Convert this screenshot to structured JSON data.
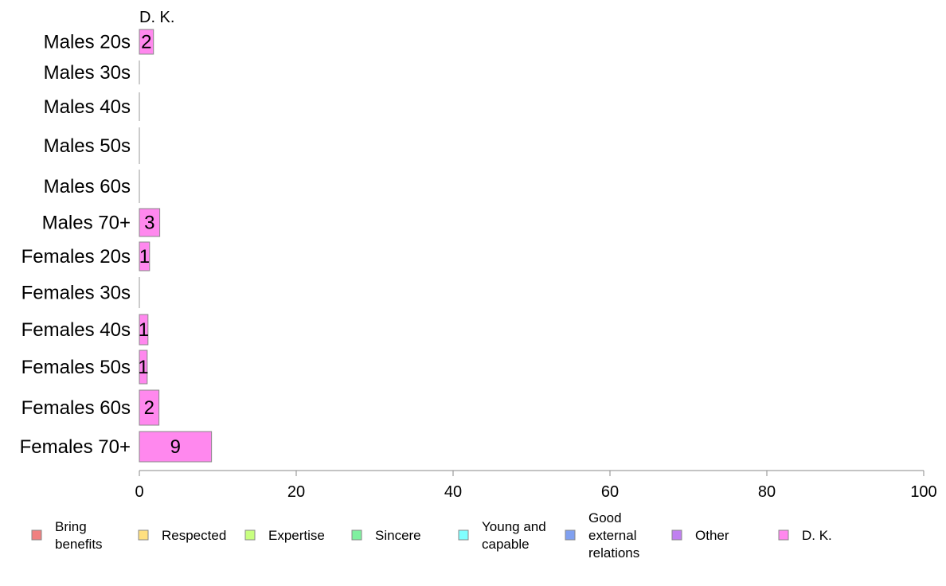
{
  "chart_data": {
    "type": "bar",
    "orientation": "horizontal",
    "stacked": true,
    "column_header": "D. K.",
    "categories": [
      "Males 20s",
      "Males 30s",
      "Males 40s",
      "Males 50s",
      "Males 60s",
      "Males 70+",
      "Females 20s",
      "Females 30s",
      "Females 40s",
      "Females 50s",
      "Females 60s",
      "Females 70+"
    ],
    "series": [
      {
        "name": "Bring benefits",
        "color": "#f08080",
        "values": [
          0,
          0,
          0,
          0,
          0,
          0,
          0,
          0,
          0,
          0,
          0,
          0
        ]
      },
      {
        "name": "Respected",
        "color": "#ffe080",
        "values": [
          0,
          0,
          0,
          0,
          0,
          0,
          0,
          0,
          0,
          0,
          0,
          0
        ]
      },
      {
        "name": "Expertise",
        "color": "#c8ff80",
        "values": [
          0,
          0,
          0,
          0,
          0,
          0,
          0,
          0,
          0,
          0,
          0,
          0
        ]
      },
      {
        "name": "Sincere",
        "color": "#80f0a0",
        "values": [
          0,
          0,
          0,
          0,
          0,
          0,
          0,
          0,
          0,
          0,
          0,
          0
        ]
      },
      {
        "name": "Young and capable",
        "color": "#80ffff",
        "values": [
          0,
          0,
          0,
          0,
          0,
          0,
          0,
          0,
          0,
          0,
          0,
          0
        ]
      },
      {
        "name": "Good external relations",
        "color": "#80a0f0",
        "values": [
          0,
          0,
          0,
          0,
          0,
          0,
          0,
          0,
          0,
          0,
          0,
          0
        ]
      },
      {
        "name": "Other",
        "color": "#c080f0",
        "values": [
          0,
          0,
          0,
          0,
          0,
          0,
          0,
          0,
          0,
          0,
          0,
          0
        ]
      },
      {
        "name": "D. K.",
        "color": "#ff88ee",
        "values": [
          1.8,
          0,
          0,
          0,
          0,
          2.6,
          1.3,
          0,
          1.1,
          1.0,
          2.5,
          9.2
        ]
      }
    ],
    "data_labels": [
      "2",
      "",
      "",
      "",
      "",
      "3",
      "1",
      "",
      "1",
      "1",
      "2",
      "9"
    ],
    "xlim": [
      0,
      100
    ],
    "xticks": [
      0,
      20,
      40,
      60,
      80,
      100
    ],
    "legend_labels": [
      [
        "Bring",
        "benefits"
      ],
      [
        "Respected"
      ],
      [
        "Expertise"
      ],
      [
        "Sincere"
      ],
      [
        "Young and",
        "capable"
      ],
      [
        "Good",
        "external",
        "relations"
      ],
      [
        "Other"
      ],
      [
        "D. K."
      ]
    ],
    "legend_position": "bottom",
    "grid": false
  }
}
